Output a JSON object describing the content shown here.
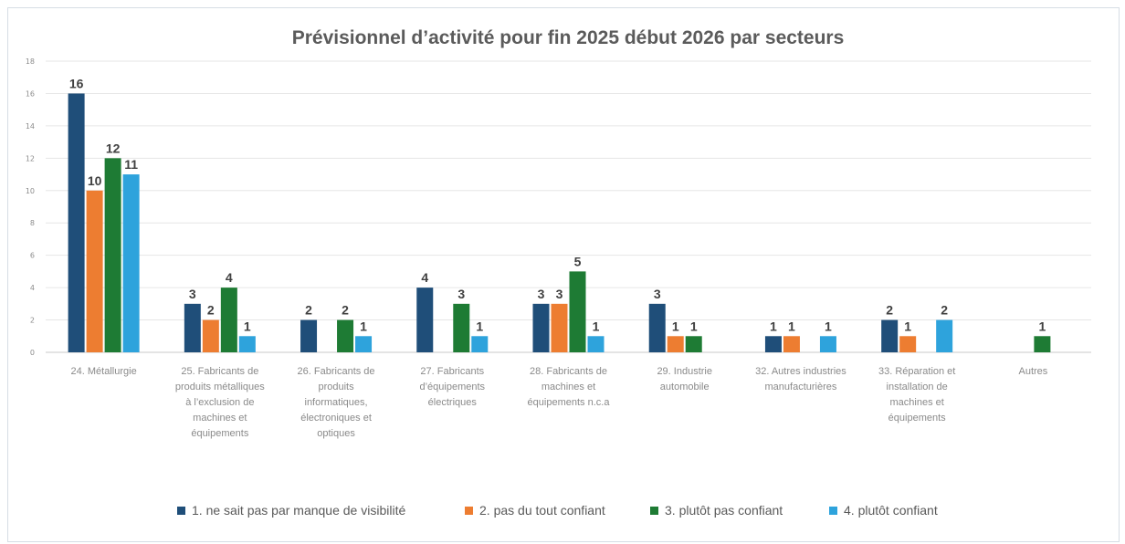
{
  "chart_data": {
    "type": "bar",
    "title": "Prévisionnel d’activité pour fin 2025 début 2026 par secteurs",
    "xlabel": "",
    "ylabel": "",
    "ylim": [
      0,
      18
    ],
    "y_ticks": [
      0,
      2,
      4,
      6,
      8,
      10,
      12,
      14,
      16,
      18
    ],
    "grid": true,
    "legend_position": "bottom",
    "categories": [
      "24. Métallurgie",
      "25. Fabricants de produits métalliques à l’exclusion de machines et équipements",
      "26. Fabricants de produits informatiques, électroniques et optiques",
      "27. Fabricants d’équipements électriques",
      "28. Fabricants de machines et équipements n.c.a",
      "29. Industrie automobile",
      "32. Autres industries manufacturières",
      "33. Réparation et installation de machines et équipements",
      "Autres"
    ],
    "category_lines": [
      [
        "24. Métallurgie"
      ],
      [
        "25. Fabricants de",
        "produits métalliques",
        "à l’exclusion de",
        "machines et",
        "équipements"
      ],
      [
        "26. Fabricants de",
        "produits",
        "informatiques,",
        "électroniques et",
        "optiques"
      ],
      [
        "27. Fabricants",
        "d’équipements",
        "électriques"
      ],
      [
        "28. Fabricants de",
        "machines et",
        "équipements n.c.a"
      ],
      [
        "29. Industrie",
        "automobile"
      ],
      [
        "32. Autres industries",
        "manufacturières"
      ],
      [
        "33. Réparation et",
        "installation de",
        "machines et",
        "équipements"
      ],
      [
        "Autres"
      ]
    ],
    "series": [
      {
        "name": "1. ne sait pas par manque de visibilité",
        "color": "#1f4e79",
        "values": [
          16,
          3,
          2,
          4,
          3,
          3,
          1,
          2,
          null
        ]
      },
      {
        "name": "2. pas du tout confiant",
        "color": "#ed7d31",
        "values": [
          10,
          2,
          null,
          null,
          3,
          1,
          1,
          1,
          null
        ]
      },
      {
        "name": "3. plutôt pas confiant",
        "color": "#1e7b34",
        "values": [
          12,
          4,
          2,
          3,
          5,
          1,
          null,
          null,
          1
        ]
      },
      {
        "name": "4. plutôt confiant",
        "color": "#2ea3dc",
        "values": [
          11,
          1,
          1,
          1,
          1,
          null,
          1,
          2,
          null
        ]
      }
    ]
  }
}
